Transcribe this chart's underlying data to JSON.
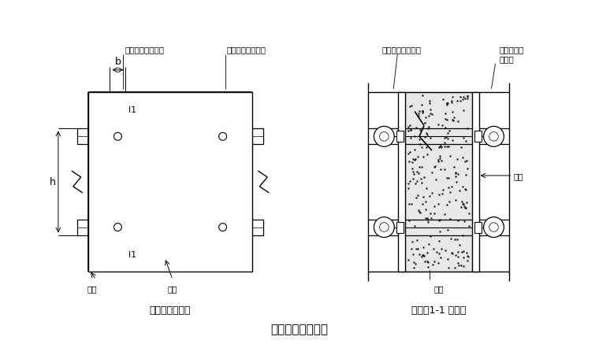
{
  "bg_color": "#ffffff",
  "line_color": "#000000",
  "title": "墙模板设计简图。",
  "left_label": "墙模板正立面图",
  "right_label": "墙模板1-1 剖面图",
  "dim_b": "b",
  "dim_h": "h",
  "dim_l1_top": "l1",
  "dim_l1_bot": "l1",
  "label_mianban_left": "面板",
  "label_luoshuan_left": "螺栓",
  "label_mianban_right": "面板",
  "label_luoshuan_right": "螺栓",
  "label_zhujing_left": "主楞（圆形钢管）",
  "label_cijing_left": "次楞（圆形钢管）",
  "label_zhujing_right": "主楞（圆形钢管）",
  "label_cijing_right": "次楞（固形",
  "label_cijing_right2": "钢管）",
  "concrete_color": "#e8e8e8"
}
